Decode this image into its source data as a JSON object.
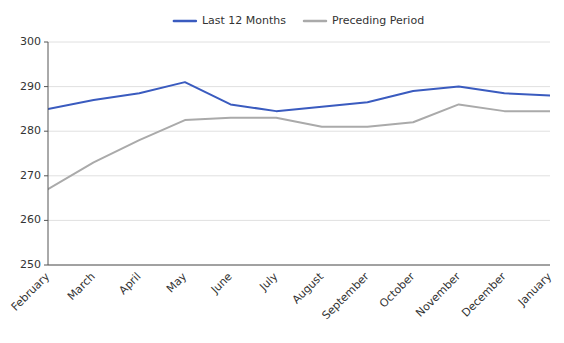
{
  "chart_data": {
    "type": "line",
    "categories": [
      "February",
      "March",
      "April",
      "May",
      "June",
      "July",
      "August",
      "September",
      "October",
      "November",
      "December",
      "January"
    ],
    "series": [
      {
        "name": "Last 12 Months",
        "color": "#3a5bbf",
        "values": [
          285,
          287,
          288.5,
          291,
          286,
          284.5,
          285.5,
          286.5,
          289,
          290,
          288.5,
          288
        ]
      },
      {
        "name": "Preceding Period",
        "color": "#aaaaaa",
        "values": [
          267,
          273,
          278,
          282.5,
          283,
          283,
          281,
          281,
          282,
          286,
          284.5,
          284.5
        ]
      }
    ],
    "ylim": [
      250,
      300
    ],
    "yticks": [
      250,
      260,
      270,
      280,
      290,
      300
    ],
    "grid": true,
    "legend": "top"
  }
}
